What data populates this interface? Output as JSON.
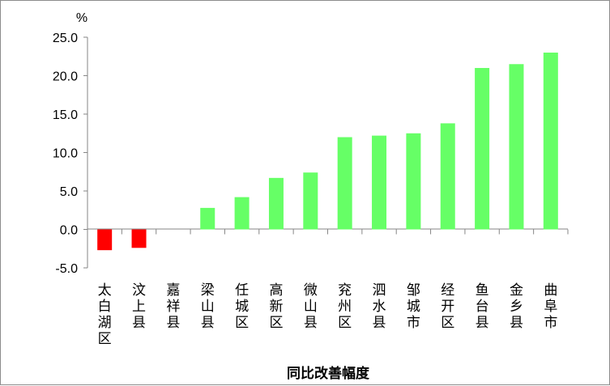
{
  "chart_data": {
    "type": "bar",
    "title": "",
    "ylabel": "%",
    "xlabel": "同比改善幅度",
    "ylim": [
      -5,
      25
    ],
    "yticks": [
      "25.0",
      "20.0",
      "15.0",
      "10.0",
      "5.0",
      "0.0",
      "-5.0"
    ],
    "grid": false,
    "categories": [
      "太白湖区",
      "汶上县",
      "嘉祥县",
      "梁山县",
      "任城区",
      "高新区",
      "微山县",
      "兖州区",
      "泗水县",
      "邹城市",
      "经开区",
      "鱼台县",
      "金乡县",
      "曲阜市"
    ],
    "values": [
      -2.7,
      -2.4,
      0.0,
      2.8,
      4.2,
      6.7,
      7.4,
      12.0,
      12.2,
      12.5,
      13.8,
      21.0,
      21.5,
      23.0
    ],
    "colors": {
      "positive": "#66ff66",
      "negative": "#ff0000"
    }
  }
}
